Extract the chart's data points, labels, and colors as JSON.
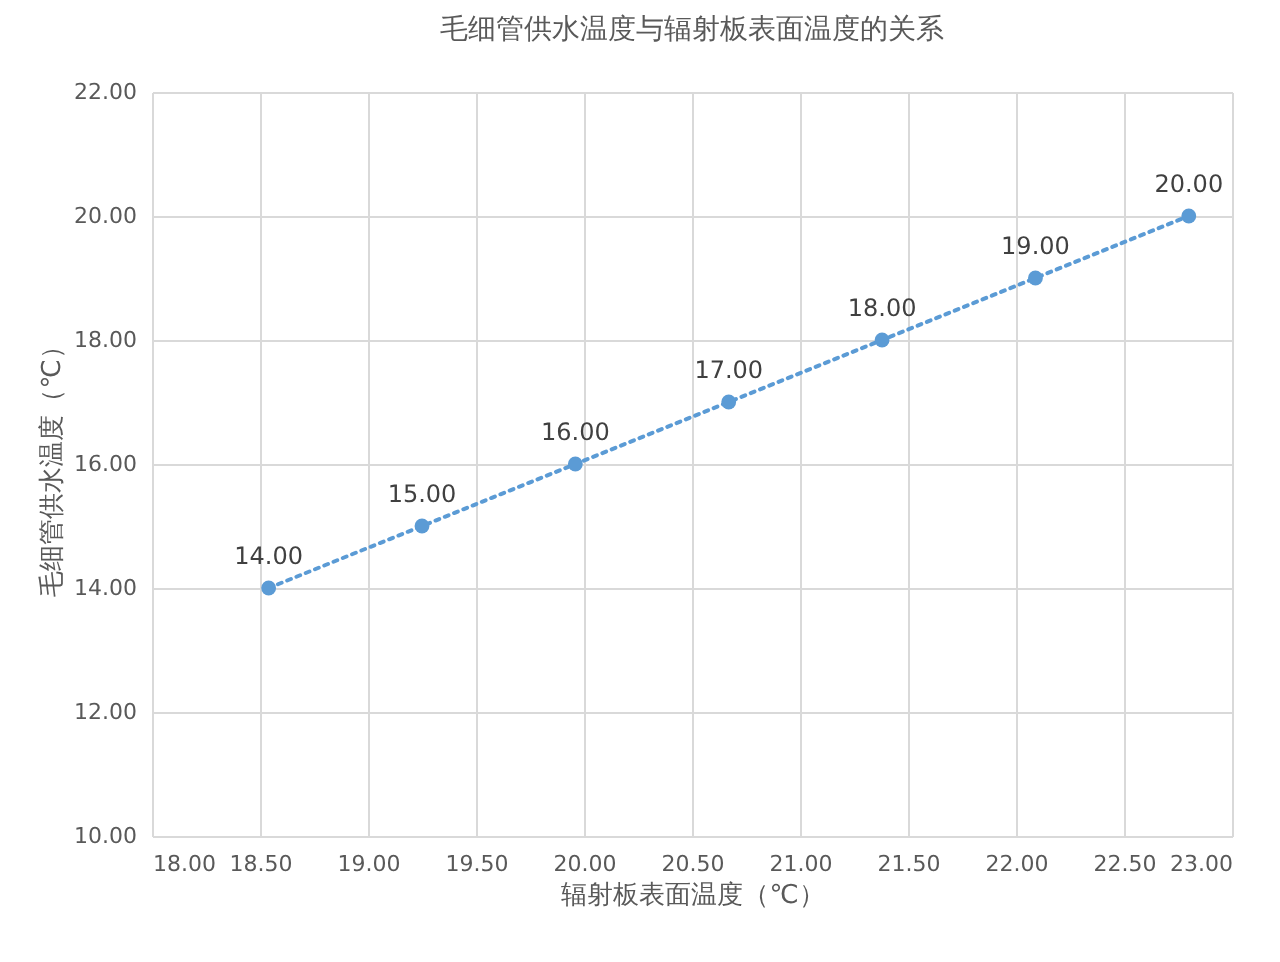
{
  "chart_data": {
    "type": "line",
    "title": "毛细管供水温度与辐射板表面温度的关系",
    "xlabel": "辐射板表面温度（℃）",
    "ylabel": "毛细管供水温度（℃）",
    "x": [
      18.54,
      19.25,
      19.96,
      20.67,
      21.38,
      22.09,
      22.8
    ],
    "series": [
      {
        "color": "#5b9bd5",
        "values": [
          14,
          15,
          16,
          17,
          18,
          19,
          20
        ],
        "value_labels": [
          "14.00",
          "15.00",
          "16.00",
          "17.00",
          "18.00",
          "19.00",
          "20.00"
        ]
      }
    ],
    "xlim": [
      18,
      23
    ],
    "xticks": [
      {
        "value": 18,
        "label": "18.00"
      },
      {
        "value": 18.5,
        "label": "18.50"
      },
      {
        "value": 19,
        "label": "19.00"
      },
      {
        "value": 19.5,
        "label": "19.50"
      },
      {
        "value": 20,
        "label": "20.00"
      },
      {
        "value": 20.5,
        "label": "20.50"
      },
      {
        "value": 21,
        "label": "21.00"
      },
      {
        "value": 21.5,
        "label": "21.50"
      },
      {
        "value": 22,
        "label": "22.00"
      },
      {
        "value": 22.5,
        "label": "22.50"
      },
      {
        "value": 23,
        "label": "23.00"
      }
    ],
    "ylim": [
      10,
      22
    ],
    "yticks": [
      {
        "value": 10,
        "label": "10.00"
      },
      {
        "value": 12,
        "label": "12.00"
      },
      {
        "value": 14,
        "label": "14.00"
      },
      {
        "value": 16,
        "label": "16.00"
      },
      {
        "value": 18,
        "label": "18.00"
      },
      {
        "value": 20,
        "label": "20.00"
      },
      {
        "value": 22,
        "label": "22.00"
      }
    ],
    "grid": true,
    "marker": "circle",
    "line_style": "dotted"
  }
}
